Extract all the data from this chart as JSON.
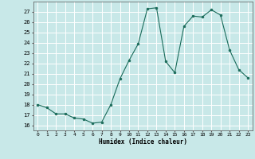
{
  "x": [
    0,
    1,
    2,
    3,
    4,
    5,
    6,
    7,
    8,
    9,
    10,
    11,
    12,
    13,
    14,
    15,
    16,
    17,
    18,
    19,
    20,
    21,
    22,
    23
  ],
  "y": [
    18.0,
    17.7,
    17.1,
    17.1,
    16.7,
    16.6,
    16.2,
    16.3,
    18.0,
    20.5,
    22.3,
    23.9,
    27.3,
    27.4,
    22.2,
    21.1,
    25.6,
    26.6,
    26.5,
    27.2,
    26.7,
    23.3,
    21.4,
    20.6
  ],
  "line_color": "#1a6b5a",
  "marker": "o",
  "marker_size": 2.0,
  "bg_color": "#c8e8e8",
  "grid_color": "#ffffff",
  "xlabel": "Humidex (Indice chaleur)",
  "ylim": [
    15.5,
    28.0
  ],
  "xlim": [
    -0.5,
    23.5
  ],
  "yticks": [
    16,
    17,
    18,
    19,
    20,
    21,
    22,
    23,
    24,
    25,
    26,
    27
  ],
  "xticks": [
    0,
    1,
    2,
    3,
    4,
    5,
    6,
    7,
    8,
    9,
    10,
    11,
    12,
    13,
    14,
    15,
    16,
    17,
    18,
    19,
    20,
    21,
    22,
    23
  ]
}
